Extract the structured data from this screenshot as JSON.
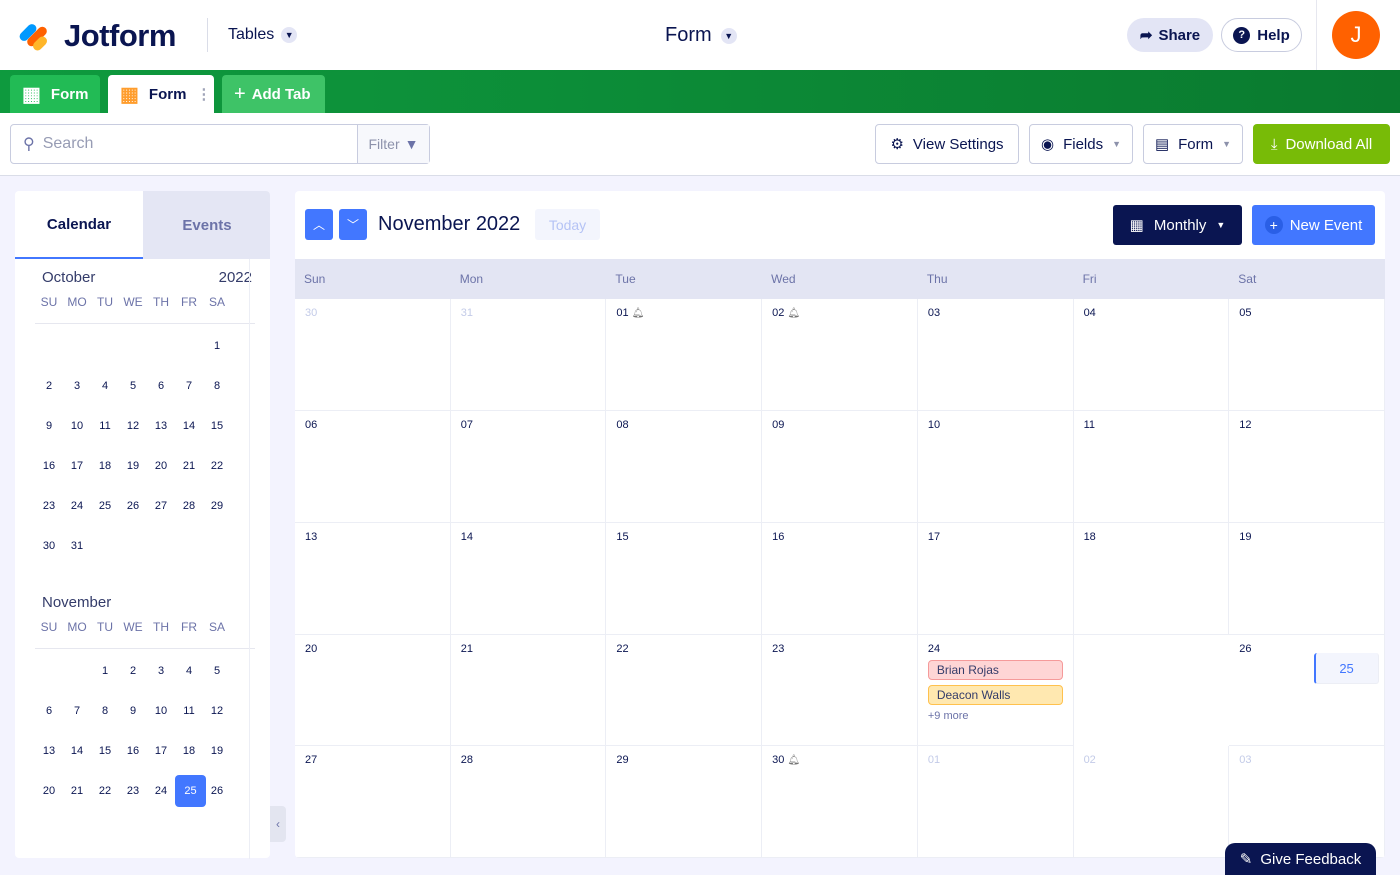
{
  "header": {
    "logo": "Jotform",
    "tables_label": "Tables",
    "title": "Form",
    "share_label": "Share",
    "help_label": "Help",
    "avatar_initial": "J"
  },
  "tabs": [
    {
      "label": "Form",
      "icon": "table-grid-icon"
    },
    {
      "label": "Form",
      "icon": "calendar-icon",
      "active": true
    },
    {
      "label": "Add Tab",
      "icon": "plus-icon"
    }
  ],
  "toolbar": {
    "search_placeholder": "Search",
    "filter_label": "Filter",
    "view_settings": "View Settings",
    "fields": "Fields",
    "form": "Form",
    "download_all": "Download All"
  },
  "colors": {
    "green_bar": "#0e9a3e",
    "download": "#78bb07",
    "primary": "#4277ff",
    "navy": "#0a1551",
    "avatar": "#ff6100"
  },
  "sidebar": {
    "tab_calendar": "Calendar",
    "tab_events": "Events",
    "weekdays": [
      "SU",
      "MO",
      "TU",
      "WE",
      "TH",
      "FR",
      "SA"
    ],
    "months": [
      {
        "name": "October",
        "year": "2022",
        "days": [
          "",
          "",
          "",
          "",
          "",
          "",
          "1",
          "2",
          "3",
          "4",
          "5",
          "6",
          "7",
          "8",
          "9",
          "10",
          "11",
          "12",
          "13",
          "14",
          "15",
          "16",
          "17",
          "18",
          "19",
          "20",
          "21",
          "22",
          "23",
          "24",
          "25",
          "26",
          "27",
          "28",
          "29",
          "30",
          "31"
        ]
      },
      {
        "name": "November",
        "year": "",
        "days": [
          "",
          "",
          "1",
          "2",
          "3",
          "4",
          "5",
          "6",
          "7",
          "8",
          "9",
          "10",
          "11",
          "12",
          "13",
          "14",
          "15",
          "16",
          "17",
          "18",
          "19",
          "20",
          "21",
          "22",
          "23",
          "24",
          "25",
          "26"
        ],
        "selected": "25"
      }
    ]
  },
  "calendar": {
    "month_title": "November 2022",
    "today_label": "Today",
    "view_label": "Monthly",
    "new_event_label": "New Event",
    "weekdays": [
      "Sun",
      "Mon",
      "Tue",
      "Wed",
      "Thu",
      "Fri",
      "Sat"
    ],
    "cells": [
      {
        "d": "30",
        "out": true
      },
      {
        "d": "31",
        "out": true
      },
      {
        "d": "01",
        "bell": true
      },
      {
        "d": "02",
        "bell": true
      },
      {
        "d": "03"
      },
      {
        "d": "04"
      },
      {
        "d": "05"
      },
      {
        "d": "06"
      },
      {
        "d": "07"
      },
      {
        "d": "08"
      },
      {
        "d": "09"
      },
      {
        "d": "10"
      },
      {
        "d": "11"
      },
      {
        "d": "12"
      },
      {
        "d": "13"
      },
      {
        "d": "14"
      },
      {
        "d": "15"
      },
      {
        "d": "16"
      },
      {
        "d": "17"
      },
      {
        "d": "18"
      },
      {
        "d": "19"
      },
      {
        "d": "20"
      },
      {
        "d": "21"
      },
      {
        "d": "22"
      },
      {
        "d": "23"
      },
      {
        "d": "24",
        "events": [
          {
            "name": "Brian Rojas",
            "bg": "#fed5d5",
            "border": "#f59a9a"
          },
          {
            "name": "Deacon Walls",
            "bg": "#ffe8b0",
            "border": "#ffc14d"
          }
        ],
        "more": "+9 more"
      },
      {
        "d": "25",
        "today": true
      },
      {
        "d": "26"
      },
      {
        "d": "27"
      },
      {
        "d": "28"
      },
      {
        "d": "29"
      },
      {
        "d": "30",
        "bell": true
      },
      {
        "d": "01",
        "out": true
      },
      {
        "d": "02",
        "out": true
      },
      {
        "d": "03",
        "out": true
      }
    ]
  },
  "feedback_label": "Give Feedback"
}
